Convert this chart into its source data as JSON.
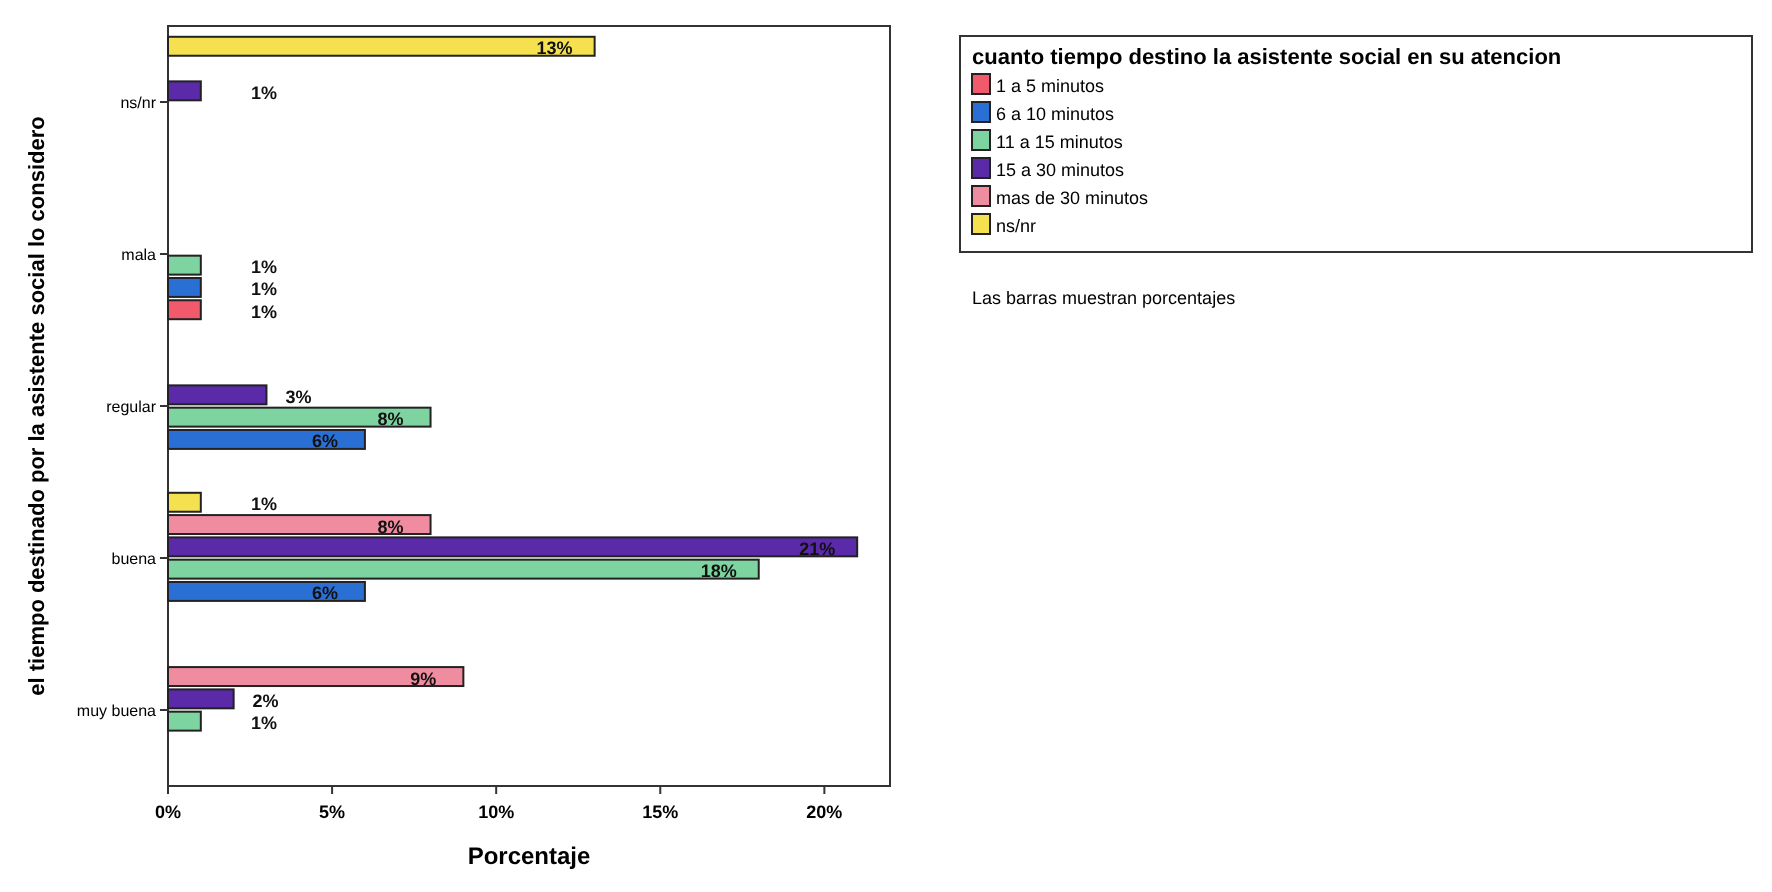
{
  "chart_data": {
    "type": "bar",
    "orientation": "horizontal",
    "xlabel": "Porcentaje",
    "ylabel": "el tiempo destinado por la asistente social lo considero",
    "legend_title": "cuanto tiempo destino la asistente social en su atencion",
    "legend": "top right",
    "grid": false,
    "annotations": [
      "Las barras muestran porcentajes"
    ],
    "categories": [
      "ns/nr",
      "mala",
      "regular",
      "buena",
      "muy buena"
    ],
    "xlim": [
      0,
      22
    ],
    "xticks": [
      {
        "value": 0,
        "label": "0%"
      },
      {
        "value": 5,
        "label": "5%"
      },
      {
        "value": 10,
        "label": "10%"
      },
      {
        "value": 15,
        "label": "15%"
      },
      {
        "value": 20,
        "label": "20%"
      }
    ],
    "series": [
      {
        "name": "1 a 5 minutos",
        "color": "#f05a6a",
        "values": [
          null,
          1,
          null,
          null,
          null
        ],
        "value_labels": [
          null,
          "1%",
          null,
          null,
          null
        ]
      },
      {
        "name": "6 a 10 minutos",
        "color": "#2a6fd4",
        "values": [
          null,
          1,
          6,
          6,
          null
        ],
        "value_labels": [
          null,
          "1%",
          "6%",
          "6%",
          null
        ]
      },
      {
        "name": "11 a 15 minutos",
        "color": "#7ed4a0",
        "values": [
          null,
          1,
          8,
          18,
          1
        ],
        "value_labels": [
          null,
          "1%",
          "8%",
          "18%",
          "1%"
        ]
      },
      {
        "name": "15 a 30 minutos",
        "color": "#5a2aa8",
        "values": [
          1,
          null,
          3,
          21,
          2
        ],
        "value_labels": [
          "1%",
          null,
          "3%",
          "21%",
          "2%"
        ]
      },
      {
        "name": "mas de 30 minutos",
        "color": "#f08ca0",
        "values": [
          null,
          null,
          null,
          8,
          9
        ],
        "value_labels": [
          null,
          null,
          null,
          "8%",
          "9%"
        ]
      },
      {
        "name": "ns/nr",
        "color": "#f5e050",
        "values": [
          13,
          null,
          null,
          1,
          null
        ],
        "value_labels": [
          "13%",
          null,
          null,
          "1%",
          null
        ]
      }
    ]
  }
}
